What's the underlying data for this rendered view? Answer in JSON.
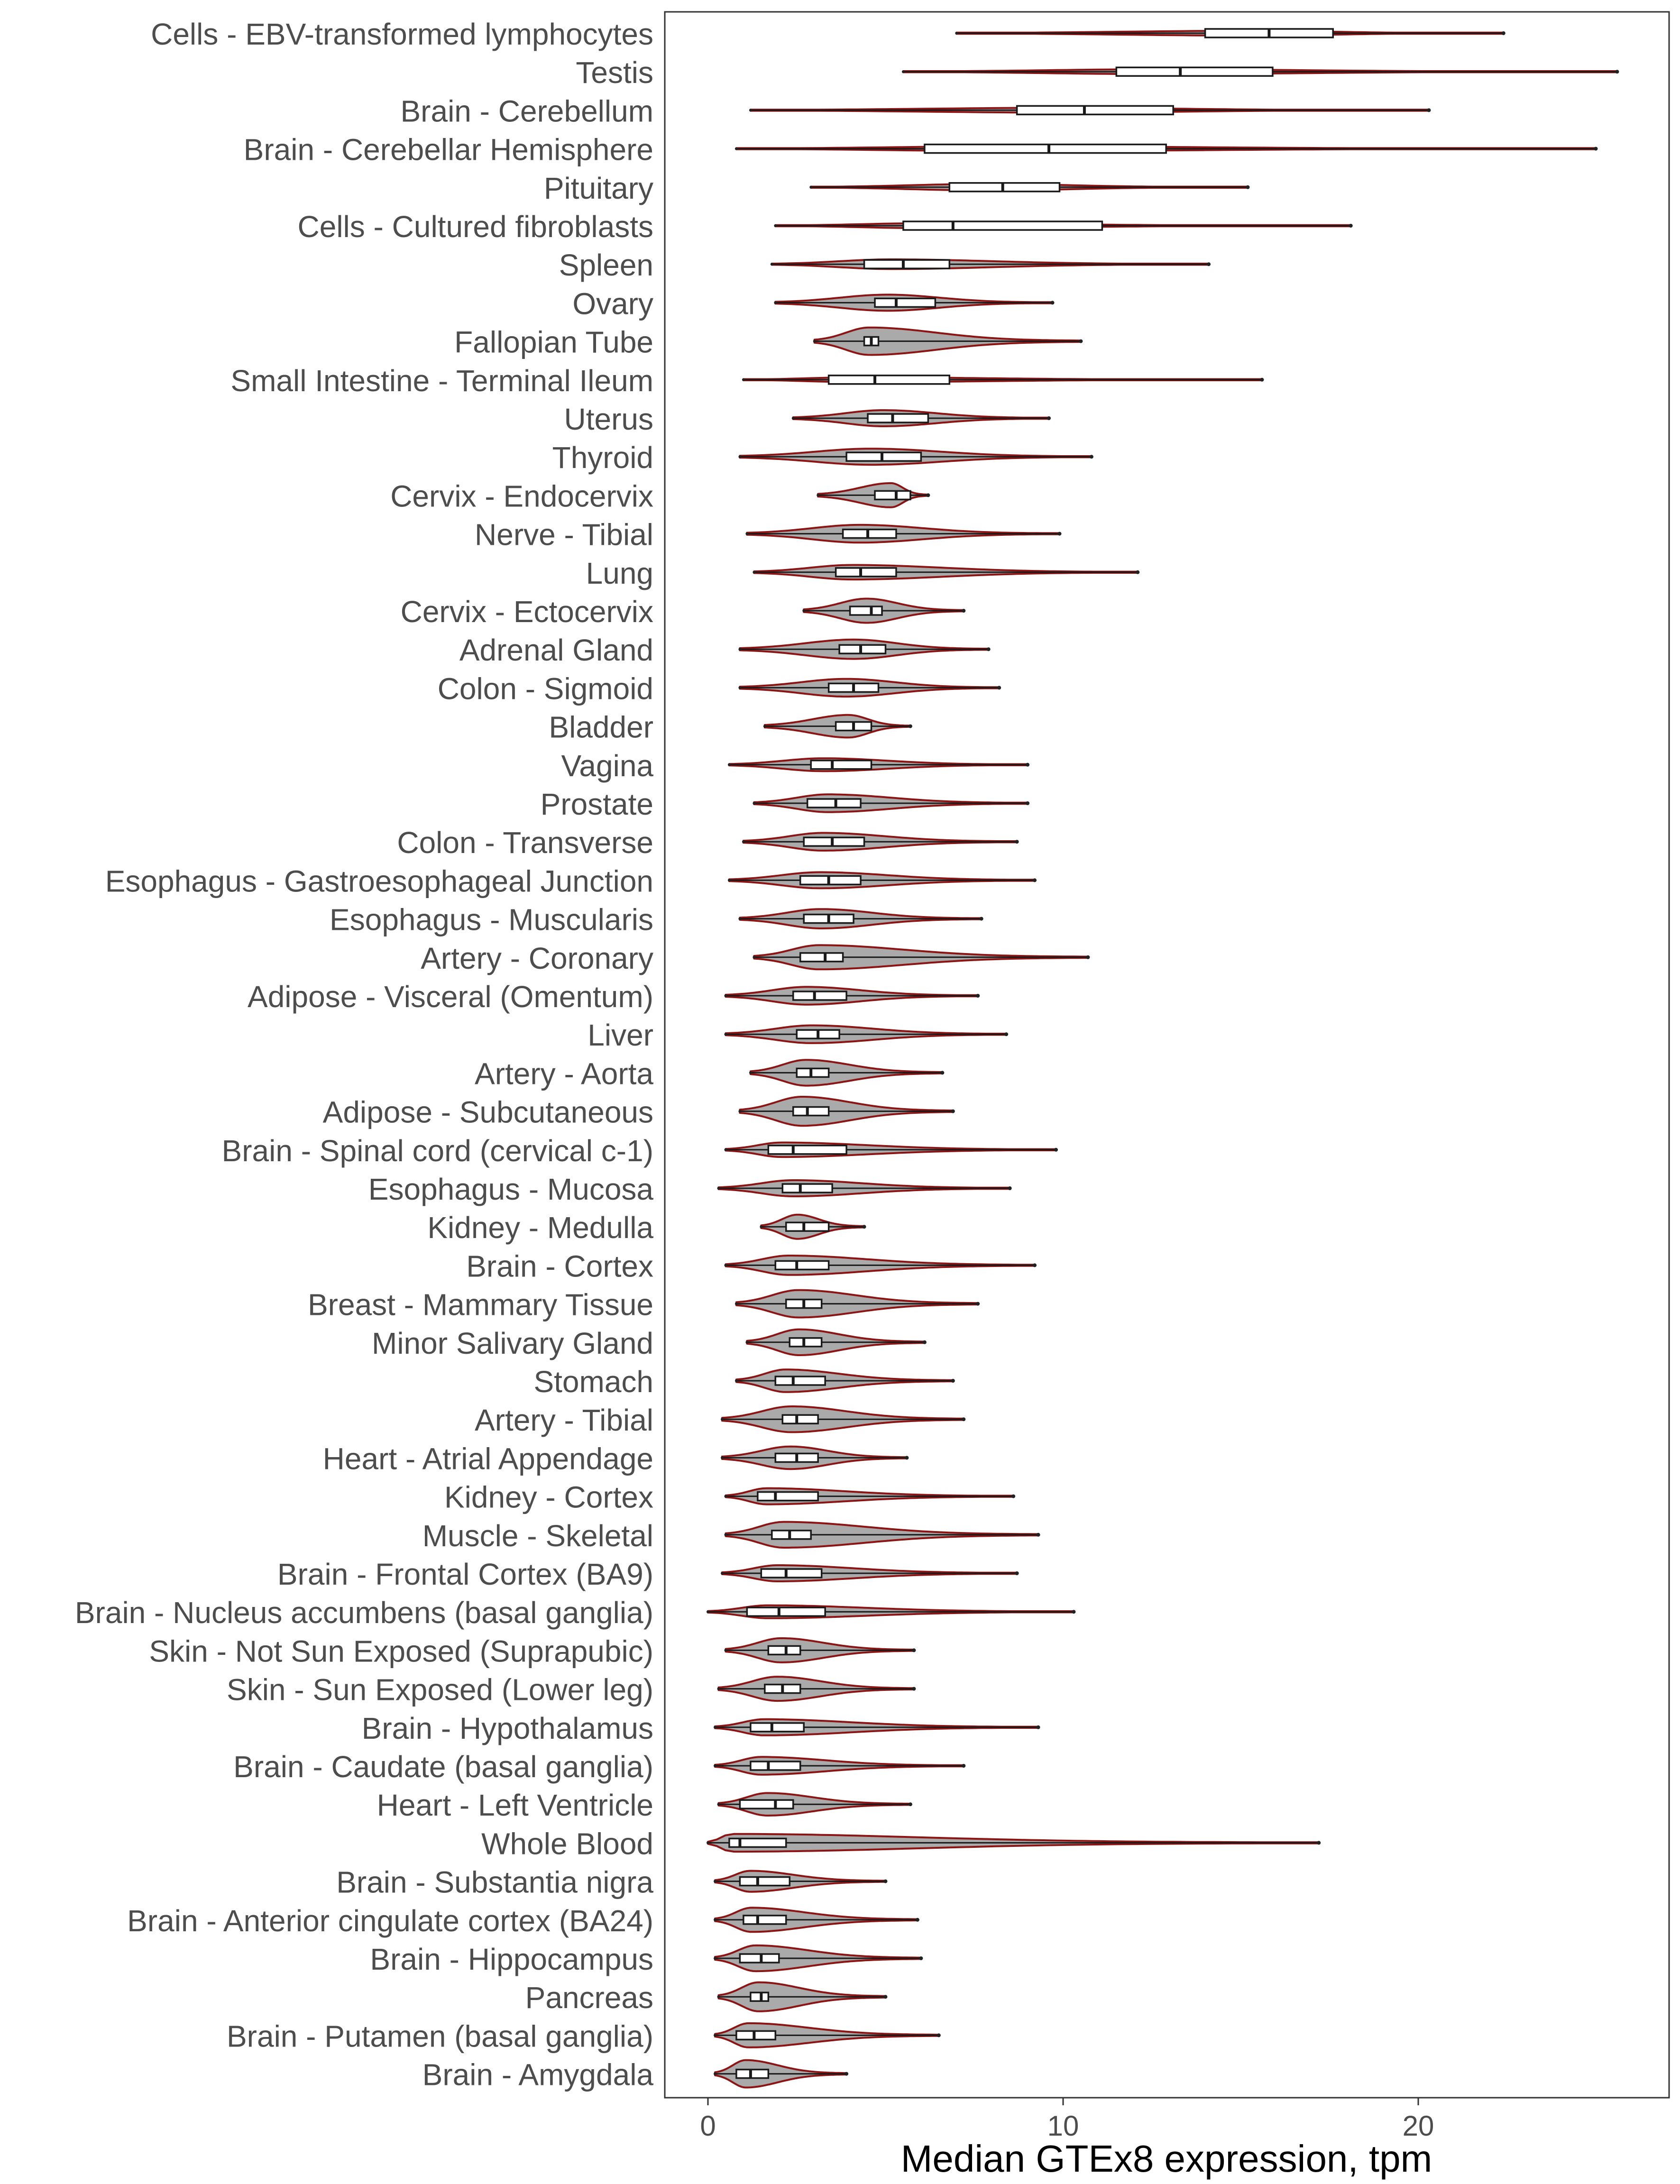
{
  "chart_data": {
    "type": "violin",
    "title": "",
    "xlabel": "Median GTEx8 expression, tpm",
    "ylabel": "",
    "xlim": [
      -1.2,
      27
    ],
    "xticks": [
      0,
      10,
      20
    ],
    "grid": false,
    "legend": "none",
    "colors": {
      "violin_fill": "#aaaaaa",
      "violin_outline": "#8b1414",
      "box_fill": "#ffffff",
      "box_stroke": "#1a1a1a",
      "frame": "#333333",
      "label": "#4d4d4d"
    },
    "categories": [
      "Cells - EBV-transformed lymphocytes",
      "Testis",
      "Brain - Cerebellum",
      "Brain - Cerebellar Hemisphere",
      "Pituitary",
      "Cells - Cultured fibroblasts",
      "Spleen",
      "Ovary",
      "Fallopian Tube",
      "Small Intestine - Terminal Ileum",
      "Uterus",
      "Thyroid",
      "Cervix - Endocervix",
      "Nerve - Tibial",
      "Lung",
      "Cervix - Ectocervix",
      "Adrenal Gland",
      "Colon - Sigmoid",
      "Bladder",
      "Vagina",
      "Prostate",
      "Colon - Transverse",
      "Esophagus - Gastroesophageal Junction",
      "Esophagus - Muscularis",
      "Artery - Coronary",
      "Adipose - Visceral (Omentum)",
      "Liver",
      "Artery - Aorta",
      "Adipose - Subcutaneous",
      "Brain - Spinal cord (cervical c-1)",
      "Esophagus - Mucosa",
      "Kidney - Medulla",
      "Brain - Cortex",
      "Breast - Mammary Tissue",
      "Minor Salivary Gland",
      "Stomach",
      "Artery - Tibial",
      "Heart - Atrial Appendage",
      "Kidney - Cortex",
      "Muscle - Skeletal",
      "Brain - Frontal Cortex (BA9)",
      "Brain - Nucleus accumbens (basal ganglia)",
      "Skin - Not Sun Exposed (Suprapubic)",
      "Skin - Sun Exposed (Lower leg)",
      "Brain - Hypothalamus",
      "Brain - Caudate (basal ganglia)",
      "Heart - Left Ventricle",
      "Whole Blood",
      "Brain - Substantia nigra",
      "Brain - Anterior cingulate cortex (BA24)",
      "Brain - Hippocampus",
      "Pancreas",
      "Brain - Putamen (basal ganglia)",
      "Brain - Amygdala"
    ],
    "series": [
      {
        "min": 7.0,
        "q1": 14.0,
        "median": 15.8,
        "q3": 17.6,
        "max": 22.4,
        "width": 0.15
      },
      {
        "min": 5.5,
        "q1": 11.5,
        "median": 13.3,
        "q3": 15.9,
        "max": 25.6,
        "width": 0.15
      },
      {
        "min": 1.2,
        "q1": 8.7,
        "median": 10.6,
        "q3": 13.1,
        "max": 20.3,
        "width": 0.15
      },
      {
        "min": 0.8,
        "q1": 6.1,
        "median": 9.6,
        "q3": 12.9,
        "max": 25.0,
        "width": 0.15
      },
      {
        "min": 2.9,
        "q1": 6.8,
        "median": 8.3,
        "q3": 9.9,
        "max": 15.2,
        "width": 0.2
      },
      {
        "min": 1.9,
        "q1": 5.5,
        "median": 6.9,
        "q3": 11.1,
        "max": 18.1,
        "width": 0.15
      },
      {
        "min": 1.8,
        "q1": 4.4,
        "median": 5.5,
        "q3": 6.8,
        "max": 14.1,
        "width": 0.3
      },
      {
        "min": 1.9,
        "q1": 4.7,
        "median": 5.3,
        "q3": 6.4,
        "max": 9.7,
        "width": 0.5
      },
      {
        "min": 3.0,
        "q1": 4.4,
        "median": 4.6,
        "q3": 4.8,
        "max": 10.5,
        "width": 0.85
      },
      {
        "min": 1.0,
        "q1": 3.4,
        "median": 4.7,
        "q3": 6.8,
        "max": 15.6,
        "width": 0.15
      },
      {
        "min": 2.4,
        "q1": 4.5,
        "median": 5.2,
        "q3": 6.2,
        "max": 9.6,
        "width": 0.5
      },
      {
        "min": 0.9,
        "q1": 3.9,
        "median": 4.9,
        "q3": 6.0,
        "max": 10.8,
        "width": 0.5
      },
      {
        "min": 3.1,
        "q1": 4.7,
        "median": 5.3,
        "q3": 5.7,
        "max": 6.2,
        "width": 0.75
      },
      {
        "min": 1.1,
        "q1": 3.8,
        "median": 4.5,
        "q3": 5.3,
        "max": 9.9,
        "width": 0.55
      },
      {
        "min": 1.3,
        "q1": 3.6,
        "median": 4.3,
        "q3": 5.3,
        "max": 12.1,
        "width": 0.45
      },
      {
        "min": 2.7,
        "q1": 4.0,
        "median": 4.6,
        "q3": 4.9,
        "max": 7.2,
        "width": 0.75
      },
      {
        "min": 0.9,
        "q1": 3.7,
        "median": 4.3,
        "q3": 5.0,
        "max": 7.9,
        "width": 0.6
      },
      {
        "min": 0.9,
        "q1": 3.4,
        "median": 4.1,
        "q3": 4.8,
        "max": 8.2,
        "width": 0.55
      },
      {
        "min": 1.6,
        "q1": 3.6,
        "median": 4.1,
        "q3": 4.6,
        "max": 5.7,
        "width": 0.7
      },
      {
        "min": 0.6,
        "q1": 2.9,
        "median": 3.5,
        "q3": 4.6,
        "max": 9.0,
        "width": 0.4
      },
      {
        "min": 1.3,
        "q1": 2.8,
        "median": 3.6,
        "q3": 4.3,
        "max": 9.0,
        "width": 0.55
      },
      {
        "min": 1.0,
        "q1": 2.7,
        "median": 3.5,
        "q3": 4.4,
        "max": 8.7,
        "width": 0.55
      },
      {
        "min": 0.6,
        "q1": 2.6,
        "median": 3.4,
        "q3": 4.3,
        "max": 9.2,
        "width": 0.5
      },
      {
        "min": 0.9,
        "q1": 2.7,
        "median": 3.4,
        "q3": 4.1,
        "max": 7.7,
        "width": 0.6
      },
      {
        "min": 1.3,
        "q1": 2.6,
        "median": 3.3,
        "q3": 3.8,
        "max": 10.7,
        "width": 0.75
      },
      {
        "min": 0.5,
        "q1": 2.4,
        "median": 3.0,
        "q3": 3.9,
        "max": 7.6,
        "width": 0.55
      },
      {
        "min": 0.5,
        "q1": 2.5,
        "median": 3.1,
        "q3": 3.7,
        "max": 8.4,
        "width": 0.55
      },
      {
        "min": 1.2,
        "q1": 2.5,
        "median": 2.9,
        "q3": 3.4,
        "max": 6.6,
        "width": 0.8
      },
      {
        "min": 0.9,
        "q1": 2.4,
        "median": 2.8,
        "q3": 3.4,
        "max": 6.9,
        "width": 0.9
      },
      {
        "min": 0.5,
        "q1": 1.7,
        "median": 2.4,
        "q3": 3.9,
        "max": 9.8,
        "width": 0.45
      },
      {
        "min": 0.3,
        "q1": 2.1,
        "median": 2.6,
        "q3": 3.5,
        "max": 8.5,
        "width": 0.5
      },
      {
        "min": 1.5,
        "q1": 2.2,
        "median": 2.7,
        "q3": 3.4,
        "max": 4.4,
        "width": 0.75
      },
      {
        "min": 0.5,
        "q1": 1.9,
        "median": 2.5,
        "q3": 3.4,
        "max": 9.2,
        "width": 0.6
      },
      {
        "min": 0.8,
        "q1": 2.2,
        "median": 2.7,
        "q3": 3.2,
        "max": 7.6,
        "width": 0.85
      },
      {
        "min": 1.1,
        "q1": 2.3,
        "median": 2.7,
        "q3": 3.2,
        "max": 6.1,
        "width": 0.8
      },
      {
        "min": 0.8,
        "q1": 1.9,
        "median": 2.4,
        "q3": 3.3,
        "max": 6.9,
        "width": 0.7
      },
      {
        "min": 0.4,
        "q1": 2.1,
        "median": 2.5,
        "q3": 3.1,
        "max": 7.2,
        "width": 0.8
      },
      {
        "min": 0.4,
        "q1": 1.9,
        "median": 2.5,
        "q3": 3.1,
        "max": 5.6,
        "width": 0.7
      },
      {
        "min": 0.5,
        "q1": 1.4,
        "median": 1.9,
        "q3": 3.1,
        "max": 8.6,
        "width": 0.5
      },
      {
        "min": 0.5,
        "q1": 1.8,
        "median": 2.3,
        "q3": 2.9,
        "max": 9.3,
        "width": 0.8
      },
      {
        "min": 0.4,
        "q1": 1.5,
        "median": 2.2,
        "q3": 3.2,
        "max": 8.7,
        "width": 0.5
      },
      {
        "min": 0.0,
        "q1": 1.1,
        "median": 2.0,
        "q3": 3.3,
        "max": 10.3,
        "width": 0.4
      },
      {
        "min": 0.5,
        "q1": 1.7,
        "median": 2.2,
        "q3": 2.6,
        "max": 5.8,
        "width": 0.75
      },
      {
        "min": 0.3,
        "q1": 1.6,
        "median": 2.1,
        "q3": 2.6,
        "max": 5.8,
        "width": 0.75
      },
      {
        "min": 0.2,
        "q1": 1.2,
        "median": 1.8,
        "q3": 2.7,
        "max": 9.3,
        "width": 0.5
      },
      {
        "min": 0.2,
        "q1": 1.2,
        "median": 1.7,
        "q3": 2.6,
        "max": 7.2,
        "width": 0.55
      },
      {
        "min": 0.3,
        "q1": 0.9,
        "median": 1.9,
        "q3": 2.4,
        "max": 5.7,
        "width": 0.7
      },
      {
        "min": 0.0,
        "q1": 0.6,
        "median": 0.9,
        "q3": 2.2,
        "max": 17.2,
        "width": 0.55
      },
      {
        "min": 0.2,
        "q1": 0.9,
        "median": 1.4,
        "q3": 2.3,
        "max": 5.0,
        "width": 0.65
      },
      {
        "min": 0.2,
        "q1": 1.0,
        "median": 1.4,
        "q3": 2.2,
        "max": 5.9,
        "width": 0.75
      },
      {
        "min": 0.2,
        "q1": 0.9,
        "median": 1.5,
        "q3": 2.0,
        "max": 6.0,
        "width": 0.8
      },
      {
        "min": 0.3,
        "q1": 1.2,
        "median": 1.5,
        "q3": 1.7,
        "max": 5.0,
        "width": 0.9
      },
      {
        "min": 0.2,
        "q1": 0.8,
        "median": 1.3,
        "q3": 1.9,
        "max": 6.5,
        "width": 0.75
      },
      {
        "min": 0.2,
        "q1": 0.8,
        "median": 1.2,
        "q3": 1.7,
        "max": 3.9,
        "width": 0.85
      }
    ]
  }
}
